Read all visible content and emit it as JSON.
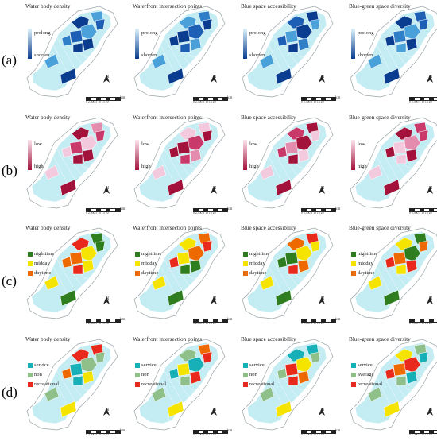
{
  "row_labels": [
    "(a)",
    "(b)",
    "(c)",
    "(d)"
  ],
  "scale_text": "0 2,500 5  10  15  20",
  "scale_unit": "km",
  "north_label": "N",
  "colors": {
    "base": "#c4ecf3",
    "outline": "#9aa4a8",
    "blue_light": "#4aa0d8",
    "blue_dark": "#0a3d8f",
    "pink_light": "#f3c9dd",
    "pink_dark": "#a3123b",
    "green": "#2e7d1f",
    "yellow": "#f4e400",
    "orange": "#ee6a00",
    "red": "#e8291c",
    "teal": "#18b0b8",
    "sage": "#8fc08a"
  },
  "rows": [
    {
      "label": "(a)",
      "legend_type": "gradient",
      "legend_top": "prolong",
      "legend_bottom": "shorten",
      "panels": [
        {
          "title": "Water body density"
        },
        {
          "title": "Waterfront intersection points"
        },
        {
          "title": "Blue space accessibility"
        },
        {
          "title": "Blue-green space diversity"
        }
      ]
    },
    {
      "label": "(b)",
      "legend_type": "gradient",
      "legend_top": "low",
      "legend_bottom": "high",
      "panels": [
        {
          "title": "Water body density"
        },
        {
          "title": "Waterfront intersection points"
        },
        {
          "title": "Blue space accessibility"
        },
        {
          "title": "Blue-green space diversity"
        }
      ]
    },
    {
      "label": "(c)",
      "legend_type": "categorical",
      "panels": [
        {
          "title": "Water body density",
          "categories": [
            "nighttime",
            "midday",
            "daytime"
          ]
        },
        {
          "title": "Waterfront intersection points",
          "categories": [
            "nighttime",
            "midday",
            "daytime"
          ]
        },
        {
          "title": "Blue space accessibility",
          "categories": [
            "nighttime",
            "midday",
            "daytime"
          ]
        },
        {
          "title": "Blue-green space diversity",
          "categories": [
            "nighttime",
            "midday",
            "daytime"
          ]
        }
      ]
    },
    {
      "label": "(d)",
      "legend_type": "categorical",
      "panels": [
        {
          "title": "Water body density",
          "categories": [
            "service",
            "non",
            "recreational"
          ]
        },
        {
          "title": "Waterfront intersection points",
          "categories": [
            "service",
            "non",
            "recreational"
          ]
        },
        {
          "title": "Blue space accessibility",
          "categories": [
            "service",
            "non",
            "recreational"
          ]
        },
        {
          "title": "Blue-green space diversity",
          "categories": [
            "service",
            "average",
            "recreational"
          ]
        }
      ]
    }
  ]
}
